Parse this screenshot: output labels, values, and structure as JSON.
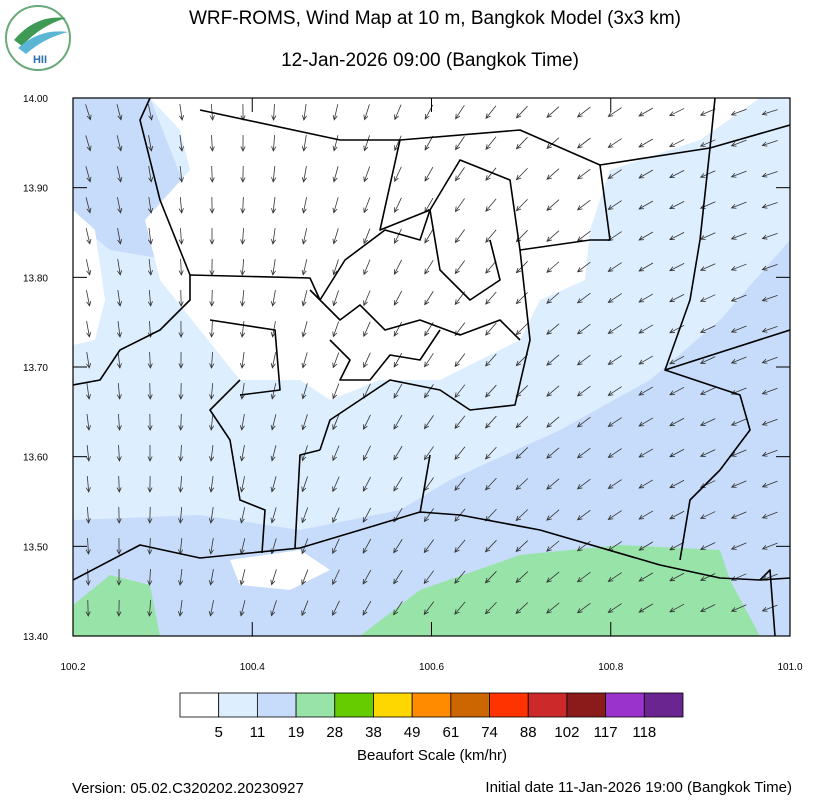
{
  "logo": {
    "text": "HII"
  },
  "map": {
    "title": "WRF-ROMS, Wind Map at 10 m, Bangkok Model (3x3 km)",
    "subtitle": "12-Jan-2026 09:00 (Bangkok Time)",
    "xlim": [
      100.2,
      101.0
    ],
    "ylim": [
      13.4,
      14.0
    ],
    "xticks": [
      {
        "value": 100.2,
        "label": "100.2"
      },
      {
        "value": 100.4,
        "label": "100.4"
      },
      {
        "value": 100.6,
        "label": "100.6"
      },
      {
        "value": 100.8,
        "label": "100.8"
      },
      {
        "value": 101.0,
        "label": "101.0"
      }
    ],
    "yticks": [
      {
        "value": 14.0,
        "label": "14.00"
      },
      {
        "value": 13.9,
        "label": "13.90"
      },
      {
        "value": 13.8,
        "label": "13.80"
      },
      {
        "value": 13.7,
        "label": "13.70"
      },
      {
        "value": 13.6,
        "label": "13.60"
      },
      {
        "value": 13.5,
        "label": "13.50"
      },
      {
        "value": 13.4,
        "label": "13.40"
      }
    ]
  },
  "colorbar": {
    "title": "Beaufort Scale (km/hr)",
    "colors": [
      "#ffffff",
      "#ddeeff",
      "#c6dcfa",
      "#98e4a8",
      "#66cc00",
      "#ffd700",
      "#ff8c00",
      "#cc6600",
      "#ff3300",
      "#cc2a2a",
      "#8b1a1a",
      "#9933cc",
      "#6a2590"
    ],
    "labels": [
      5,
      11,
      19,
      28,
      38,
      49,
      61,
      74,
      88,
      102,
      117,
      118
    ]
  },
  "footer": {
    "version": "Version: 05.02.C320202.20230927",
    "initial": "Initial date 11-Jan-2026 19:00 (Bangkok Time)"
  }
}
